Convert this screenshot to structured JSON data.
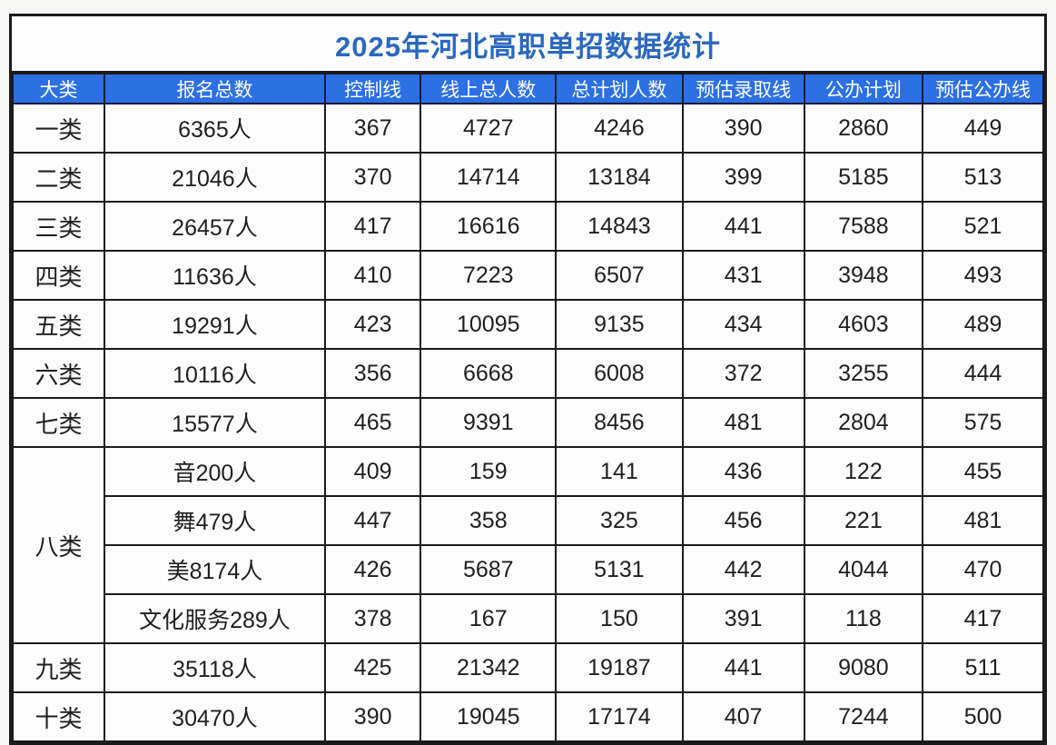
{
  "title": "2025年河北高职单招数据统计",
  "colors": {
    "header_bg": "#2c70e4",
    "header_text": "#ffffff",
    "title_text": "#2b68be",
    "grid_line": "#1b1b1b",
    "cell_bg": "#fdfdfd"
  },
  "table": {
    "headers": [
      "大类",
      "报名总数",
      "控制线",
      "线上总人数",
      "总计划人数",
      "预估录取线",
      "公办计划",
      "预估公办线"
    ],
    "rows": [
      {
        "category": "一类",
        "span": 1,
        "values": [
          "6365人",
          "367",
          "4727",
          "4246",
          "390",
          "2860",
          "449"
        ]
      },
      {
        "category": "二类",
        "span": 1,
        "values": [
          "21046人",
          "370",
          "14714",
          "13184",
          "399",
          "5185",
          "513"
        ]
      },
      {
        "category": "三类",
        "span": 1,
        "values": [
          "26457人",
          "417",
          "16616",
          "14843",
          "441",
          "7588",
          "521"
        ]
      },
      {
        "category": "四类",
        "span": 1,
        "values": [
          "11636人",
          "410",
          "7223",
          "6507",
          "431",
          "3948",
          "493"
        ]
      },
      {
        "category": "五类",
        "span": 1,
        "values": [
          "19291人",
          "423",
          "10095",
          "9135",
          "434",
          "4603",
          "489"
        ]
      },
      {
        "category": "六类",
        "span": 1,
        "values": [
          "10116人",
          "356",
          "6668",
          "6008",
          "372",
          "3255",
          "444"
        ]
      },
      {
        "category": "七类",
        "span": 1,
        "values": [
          "15577人",
          "465",
          "9391",
          "8456",
          "481",
          "2804",
          "575"
        ]
      },
      {
        "category": "八类",
        "span": 4,
        "values": [
          "音200人",
          "409",
          "159",
          "141",
          "436",
          "122",
          "455"
        ]
      },
      {
        "category": null,
        "span": 0,
        "values": [
          "舞479人",
          "447",
          "358",
          "325",
          "456",
          "221",
          "481"
        ]
      },
      {
        "category": null,
        "span": 0,
        "values": [
          "美8174人",
          "426",
          "5687",
          "5131",
          "442",
          "4044",
          "470"
        ]
      },
      {
        "category": null,
        "span": 0,
        "values": [
          "文化服务289人",
          "378",
          "167",
          "150",
          "391",
          "118",
          "417"
        ]
      },
      {
        "category": "九类",
        "span": 1,
        "values": [
          "35118人",
          "425",
          "21342",
          "19187",
          "441",
          "9080",
          "511"
        ]
      },
      {
        "category": "十类",
        "span": 1,
        "values": [
          "30470人",
          "390",
          "19045",
          "17174",
          "407",
          "7244",
          "500"
        ]
      }
    ]
  }
}
